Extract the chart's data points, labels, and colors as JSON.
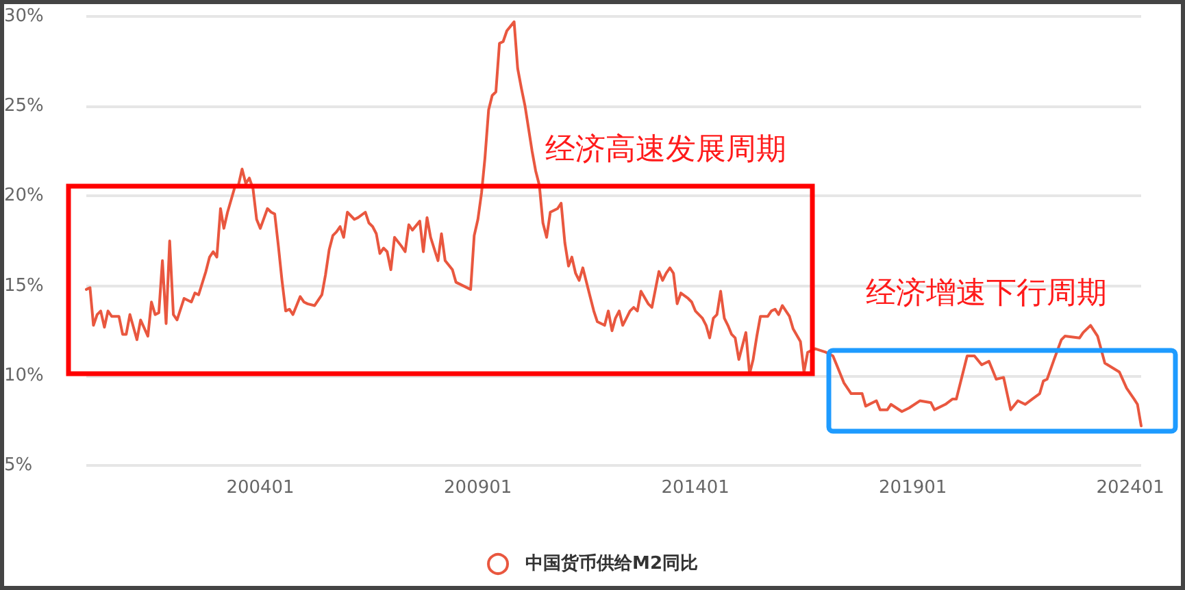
{
  "chart_data": {
    "type": "line",
    "x": [
      "2000-01",
      "2000-02",
      "2000-03",
      "2000-04",
      "2000-05",
      "2000-06",
      "2000-07",
      "2000-08",
      "2000-10",
      "2000-11",
      "2000-12",
      "2001-01",
      "2001-03",
      "2001-04",
      "2001-06",
      "2001-07",
      "2001-08",
      "2001-09",
      "2001-10",
      "2001-11",
      "2001-12",
      "2002-01",
      "2002-02",
      "2002-04",
      "2002-06",
      "2002-07",
      "2002-08",
      "2002-10",
      "2002-11",
      "2002-12",
      "2003-01",
      "2003-02",
      "2003-03",
      "2003-04",
      "2003-06",
      "2003-07",
      "2003-08",
      "2003-09",
      "2003-10",
      "2003-11",
      "2003-12",
      "2004-01",
      "2004-03",
      "2004-04",
      "2004-05",
      "2004-06",
      "2004-07",
      "2004-08",
      "2004-09",
      "2004-10",
      "2004-12",
      "2005-01",
      "2005-02",
      "2005-04",
      "2005-06",
      "2005-07",
      "2005-08",
      "2005-09",
      "2005-10",
      "2005-11",
      "2005-12",
      "2006-01",
      "2006-03",
      "2006-04",
      "2006-06",
      "2006-07",
      "2006-08",
      "2006-09",
      "2006-10",
      "2006-11",
      "2006-12",
      "2007-01",
      "2007-02",
      "2007-04",
      "2007-05",
      "2007-06",
      "2007-07",
      "2007-09",
      "2007-10",
      "2007-11",
      "2007-12",
      "2008-02",
      "2008-03",
      "2008-04",
      "2008-06",
      "2008-07",
      "2008-11",
      "2008-12",
      "2009-01",
      "2009-02",
      "2009-03",
      "2009-04",
      "2009-05",
      "2009-06",
      "2009-07",
      "2009-08",
      "2009-09",
      "2009-11",
      "2009-12",
      "2010-01",
      "2010-02",
      "2010-04",
      "2010-05",
      "2010-06",
      "2010-07",
      "2010-08",
      "2010-09",
      "2010-11",
      "2010-12",
      "2011-01",
      "2011-02",
      "2011-03",
      "2011-04",
      "2011-05",
      "2011-06",
      "2011-08",
      "2011-09",
      "2011-10",
      "2011-12",
      "2012-01",
      "2012-02",
      "2012-03",
      "2012-04",
      "2012-05",
      "2012-06",
      "2012-07",
      "2012-08",
      "2012-09",
      "2012-10",
      "2012-12",
      "2013-01",
      "2013-03",
      "2013-04",
      "2013-05",
      "2013-06",
      "2013-07",
      "2013-08",
      "2013-09",
      "2013-11",
      "2013-12",
      "2014-01",
      "2014-03",
      "2014-04",
      "2014-05",
      "2014-06",
      "2014-07",
      "2014-08",
      "2014-09",
      "2014-10",
      "2014-11",
      "2014-12",
      "2015-01",
      "2015-03",
      "2015-04",
      "2015-05",
      "2015-06",
      "2015-07",
      "2015-09",
      "2015-10",
      "2015-11",
      "2015-12",
      "2016-01",
      "2016-03",
      "2016-04",
      "2016-06",
      "2016-07",
      "2016-08",
      "2016-10",
      "2017-01",
      "2017-03",
      "2017-04",
      "2017-06",
      "2017-08",
      "2017-11",
      "2017-12",
      "2018-03",
      "2018-04",
      "2018-06",
      "2018-07",
      "2018-10",
      "2018-12",
      "2019-03",
      "2019-06",
      "2019-07",
      "2019-10",
      "2019-12",
      "2020-01",
      "2020-04",
      "2020-06",
      "2020-08",
      "2020-10",
      "2020-11",
      "2020-12",
      "2021-02",
      "2021-04",
      "2021-06",
      "2021-08",
      "2021-10",
      "2021-12",
      "2022-01",
      "2022-02",
      "2022-04",
      "2022-06",
      "2022-07",
      "2022-11",
      "2022-12",
      "2023-02",
      "2023-04",
      "2023-06",
      "2023-10",
      "2023-12",
      "2024-02",
      "2024-03",
      "2024-04"
    ],
    "series": [
      {
        "name": "中国货币供给M2同比",
        "color": "#e9573f",
        "values": [
          14.8,
          14.9,
          12.8,
          13.4,
          13.6,
          12.7,
          13.6,
          13.3,
          13.3,
          12.3,
          12.3,
          13.4,
          12.0,
          13.1,
          12.2,
          14.1,
          13.4,
          13.5,
          16.4,
          12.9,
          17.5,
          13.4,
          13.1,
          14.3,
          14.1,
          14.6,
          14.5,
          15.8,
          16.6,
          16.9,
          16.6,
          19.3,
          18.2,
          19.1,
          20.5,
          20.6,
          21.5,
          20.7,
          21.0,
          20.4,
          18.7,
          18.2,
          19.3,
          19.1,
          19.0,
          17.2,
          15.3,
          13.6,
          13.7,
          13.4,
          14.4,
          14.1,
          14.0,
          13.9,
          14.5,
          15.6,
          17.0,
          17.8,
          18.0,
          18.3,
          17.7,
          19.1,
          18.7,
          18.8,
          19.1,
          18.5,
          18.3,
          17.9,
          16.8,
          17.1,
          16.9,
          15.9,
          17.7,
          17.2,
          16.9,
          18.4,
          18.1,
          18.6,
          16.9,
          18.8,
          17.7,
          16.4,
          17.9,
          16.4,
          15.9,
          15.2,
          14.8,
          17.8,
          18.7,
          20.2,
          22.1,
          24.8,
          25.6,
          25.8,
          28.5,
          28.6,
          29.2,
          29.7,
          27.1,
          26.0,
          25.0,
          22.5,
          21.4,
          20.6,
          18.5,
          17.7,
          19.1,
          19.3,
          19.6,
          17.4,
          16.1,
          16.6,
          15.7,
          15.3,
          16.0,
          14.4,
          13.6,
          13.0,
          12.8,
          13.6,
          12.5,
          13.2,
          13.6,
          12.8,
          13.2,
          13.6,
          13.8,
          13.6,
          14.7,
          14.0,
          13.8,
          15.8,
          15.3,
          15.7,
          16.0,
          15.7,
          14.0,
          14.6,
          14.3,
          14.1,
          13.6,
          13.2,
          12.8,
          12.1,
          13.2,
          13.4,
          14.7,
          13.2,
          12.8,
          12.3,
          12.1,
          10.9,
          12.4,
          10.1,
          10.9,
          12.2,
          13.3,
          13.3,
          13.6,
          13.7,
          13.4,
          13.9,
          13.3,
          12.6,
          11.9,
          10.2,
          11.3,
          11.5,
          11.3,
          11.1,
          10.6,
          9.6,
          9.0,
          9.0,
          8.3,
          8.6,
          8.1,
          8.1,
          8.4,
          8.0,
          8.2,
          8.6,
          8.5,
          8.1,
          8.4,
          8.7,
          8.7,
          11.1,
          11.1,
          10.6,
          10.8,
          10.3,
          9.8,
          9.9,
          8.1,
          8.6,
          8.4,
          8.7,
          9.0,
          9.7,
          9.8,
          10.9,
          12.0,
          12.2,
          12.1,
          12.4,
          12.8,
          12.2,
          10.7,
          10.2,
          9.3,
          8.7,
          8.4,
          7.2
        ]
      }
    ],
    "xlim": [
      "2000-01",
      "2024-04"
    ],
    "xticks": [
      {
        "value": "2004-01",
        "label": "200401"
      },
      {
        "value": "2009-01",
        "label": "200901"
      },
      {
        "value": "2014-01",
        "label": "201401"
      },
      {
        "value": "2019-01",
        "label": "201901"
      },
      {
        "value": "2024-01",
        "label": "202401"
      }
    ],
    "ylim": [
      5,
      30
    ],
    "yticks": [
      {
        "value": 5,
        "label": "5%"
      },
      {
        "value": 10,
        "label": "10%"
      },
      {
        "value": 15,
        "label": "15%"
      },
      {
        "value": 20,
        "label": "20%"
      },
      {
        "value": 25,
        "label": "25%"
      },
      {
        "value": 30,
        "label": "30%"
      }
    ],
    "grid": "y",
    "legend": "bottom",
    "annotations": [
      "经济高速发展周期",
      "经济增速下行周期"
    ]
  }
}
